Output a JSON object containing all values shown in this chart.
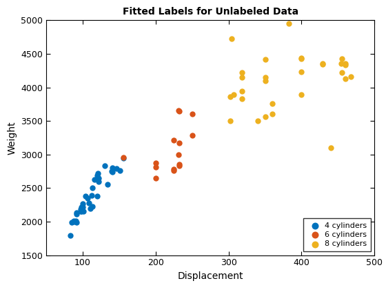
{
  "four_cyl_x": [
    83,
    85,
    88,
    88,
    90,
    91,
    91,
    91,
    97,
    97,
    98,
    98,
    100,
    100,
    101,
    104,
    107,
    108,
    110,
    112,
    113,
    113,
    116,
    120,
    120,
    121,
    122,
    122,
    130,
    134,
    140,
    141,
    141,
    146,
    151,
    156
  ],
  "four_cyl_y": [
    1795,
    1985,
    2000,
    2010,
    2015,
    1985,
    2110,
    2130,
    2155,
    2190,
    2155,
    2220,
    2215,
    2265,
    2150,
    2380,
    2350,
    2275,
    2200,
    2395,
    2228,
    2500,
    2625,
    2380,
    2690,
    2720,
    2650,
    2595,
    2830,
    2560,
    2755,
    2745,
    2800,
    2790,
    2760,
    2950
  ],
  "six_cyl_x": [
    156,
    200,
    200,
    200,
    225,
    225,
    225,
    231,
    231,
    232,
    232,
    232,
    232,
    250,
    250
  ],
  "six_cyl_y": [
    2960,
    2875,
    2810,
    2650,
    2780,
    2765,
    3210,
    3000,
    3660,
    2835,
    2855,
    3650,
    3170,
    3285,
    3600
  ],
  "eight_cyl_x": [
    302,
    302,
    304,
    307,
    318,
    318,
    318,
    318,
    340,
    350,
    350,
    350,
    350,
    360,
    360,
    383,
    400,
    400,
    400,
    400,
    429,
    429,
    440,
    454,
    455,
    455,
    460,
    460,
    460,
    468
  ],
  "eight_cyl_y": [
    3500,
    3860,
    4730,
    3890,
    3945,
    3830,
    4150,
    4220,
    3500,
    3565,
    4100,
    4150,
    4415,
    3605,
    3760,
    4955,
    3890,
    4235,
    4425,
    4440,
    4341,
    4354,
    3100,
    4354,
    4425,
    4220,
    4340,
    4354,
    4130,
    4160
  ],
  "title": "Fitted Labels for Unlabeled Data",
  "xlabel": "Displacement",
  "ylabel": "Weight",
  "xlim": [
    50,
    500
  ],
  "ylim": [
    1500,
    5000
  ],
  "color_4cyl": "#0072BD",
  "color_6cyl": "#D95319",
  "color_8cyl": "#EDB120",
  "marker_size": 36,
  "legend_labels": [
    "4 cylinders",
    "6 cylinders",
    "8 cylinders"
  ],
  "xticks": [
    100,
    200,
    300,
    400,
    500
  ],
  "yticks": [
    1500,
    2000,
    2500,
    3000,
    3500,
    4000,
    4500,
    5000
  ]
}
